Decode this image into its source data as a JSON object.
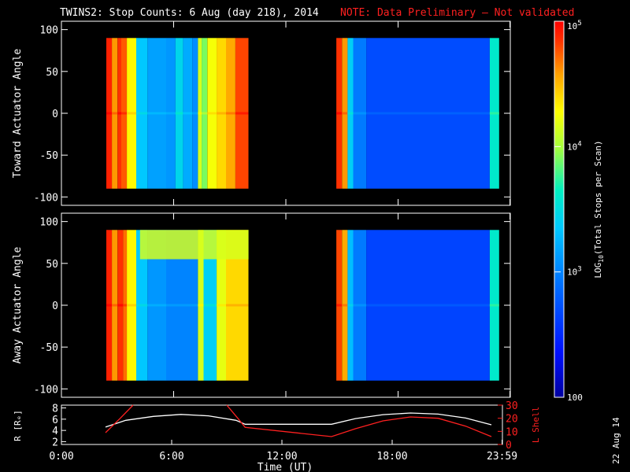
{
  "header": {
    "title": "TWINS2: Stop Counts:  6 Aug (day 218), 2014",
    "note": "NOTE: Data Preliminary – Not validated"
  },
  "footer": {
    "date_stamp": "22 Aug 14"
  },
  "colors": {
    "note": "#ff2020",
    "l_shell_line": "#ff2020",
    "r_line": "#ffffff",
    "background": "#000000"
  },
  "chart_data": [
    {
      "type": "heatmap",
      "ylabel": "Toward Actuator Angle",
      "ylim": [
        -110,
        110
      ],
      "yticks": [
        100,
        50,
        0,
        -50,
        -100
      ],
      "xlim": [
        0,
        24
      ],
      "angle_range": [
        -90,
        90
      ],
      "data_intervals_ut": [
        [
          2.4,
          10.0
        ],
        [
          14.7,
          23.4
        ]
      ],
      "columns": [
        {
          "t0": 2.4,
          "t1": 2.7,
          "log10": 4.9
        },
        {
          "t0": 2.7,
          "t1": 3.0,
          "log10": 4.6
        },
        {
          "t0": 3.0,
          "t1": 3.2,
          "log10": 4.85
        },
        {
          "t0": 3.2,
          "t1": 3.5,
          "log10": 4.75
        },
        {
          "t0": 3.5,
          "t1": 4.0,
          "log10": 4.3
        },
        {
          "t0": 4.0,
          "t1": 4.6,
          "log10": 3.35
        },
        {
          "t0": 4.6,
          "t1": 5.6,
          "log10": 3.15
        },
        {
          "t0": 5.6,
          "t1": 6.1,
          "log10": 3.1
        },
        {
          "t0": 6.1,
          "t1": 6.5,
          "log10": 3.45
        },
        {
          "t0": 6.5,
          "t1": 7.0,
          "log10": 3.2
        },
        {
          "t0": 7.0,
          "t1": 7.3,
          "log10": 3.05
        },
        {
          "t0": 7.3,
          "t1": 7.5,
          "log10": 4.15
        },
        {
          "t0": 7.5,
          "t1": 7.8,
          "log10": 3.9
        },
        {
          "t0": 7.8,
          "t1": 8.3,
          "log10": 4.25
        },
        {
          "t0": 8.3,
          "t1": 8.8,
          "log10": 4.4
        },
        {
          "t0": 8.8,
          "t1": 9.3,
          "log10": 4.55
        },
        {
          "t0": 9.3,
          "t1": 10.0,
          "log10": 4.8
        },
        {
          "t0": 14.7,
          "t1": 15.0,
          "log10": 4.85
        },
        {
          "t0": 15.0,
          "t1": 15.3,
          "log10": 4.6
        },
        {
          "t0": 15.3,
          "t1": 15.6,
          "log10": 3.4
        },
        {
          "t0": 15.6,
          "t1": 16.3,
          "log10": 2.95
        },
        {
          "t0": 16.3,
          "t1": 22.9,
          "log10": 2.7
        },
        {
          "t0": 22.9,
          "t1": 23.4,
          "log10": 3.6
        }
      ]
    },
    {
      "type": "heatmap",
      "ylabel": "Away Actuator Angle",
      "ylim": [
        -110,
        110
      ],
      "yticks": [
        100,
        50,
        0,
        -50,
        -100
      ],
      "xlim": [
        0,
        24
      ],
      "angle_range": [
        -90,
        90
      ],
      "data_intervals_ut": [
        [
          2.4,
          10.0
        ],
        [
          14.7,
          23.4
        ]
      ],
      "columns": [
        {
          "t0": 2.4,
          "t1": 2.7,
          "log10": 4.9
        },
        {
          "t0": 2.7,
          "t1": 3.0,
          "log10": 4.6
        },
        {
          "t0": 3.0,
          "t1": 3.3,
          "log10": 4.85
        },
        {
          "t0": 3.3,
          "t1": 3.5,
          "log10": 4.7
        },
        {
          "t0": 3.5,
          "t1": 4.0,
          "log10": 4.3
        },
        {
          "t0": 4.0,
          "t1": 4.6,
          "log10": 3.35
        },
        {
          "t0": 4.6,
          "t1": 5.6,
          "log10": 3.1
        },
        {
          "t0": 5.6,
          "t1": 7.3,
          "log10": 3.0
        },
        {
          "t0": 7.3,
          "t1": 7.6,
          "log10": 4.15
        },
        {
          "t0": 7.6,
          "t1": 8.3,
          "log10": 3.4
        },
        {
          "t0": 8.3,
          "t1": 8.8,
          "log10": 4.2
        },
        {
          "t0": 8.8,
          "t1": 10.0,
          "log10": 4.4
        },
        {
          "t0": 14.7,
          "t1": 15.0,
          "log10": 4.8
        },
        {
          "t0": 15.0,
          "t1": 15.3,
          "log10": 4.55
        },
        {
          "t0": 15.3,
          "t1": 15.6,
          "log10": 3.3
        },
        {
          "t0": 15.6,
          "t1": 16.3,
          "log10": 2.95
        },
        {
          "t0": 16.3,
          "t1": 22.9,
          "log10": 2.65
        },
        {
          "t0": 22.9,
          "t1": 23.4,
          "log10": 3.6
        }
      ],
      "band": {
        "t0": 4.2,
        "t1": 10.0,
        "angle0": 55,
        "angle1": 90,
        "log10": 4.15
      }
    },
    {
      "type": "line",
      "xlabel": "Time (UT)",
      "xlim": [
        0,
        24
      ],
      "xticks": [
        "0:00",
        "6:00",
        "12:00",
        "18:00",
        "23:59"
      ],
      "xtick_values": [
        0,
        6,
        12,
        18,
        23.98
      ],
      "ylabel": "R [Rₑ]",
      "ylim": [
        1.5,
        8.5
      ],
      "yticks": [
        2,
        4,
        6,
        8
      ],
      "y2label": "L Shell",
      "y2lim": [
        0,
        30
      ],
      "y2ticks": [
        0,
        10,
        20,
        30
      ],
      "series": [
        {
          "name": "R [Rₑ]",
          "axis": "left",
          "x": [
            2.4,
            3.5,
            5.0,
            6.5,
            8.0,
            9.5,
            10.0,
            14.7,
            16.0,
            17.5,
            19.0,
            20.5,
            22.0,
            23.4
          ],
          "values": [
            4.6,
            5.8,
            6.5,
            6.85,
            6.6,
            5.8,
            5.1,
            5.1,
            6.1,
            6.8,
            7.1,
            6.9,
            6.2,
            5.0
          ]
        },
        {
          "name": "L Shell",
          "axis": "right",
          "segments": [
            {
              "x": [
                2.4,
                3.2,
                3.9
              ],
              "values": [
                9,
                20,
                30
              ]
            },
            {
              "x": [
                9.0,
                9.6,
                10.0,
                14.7,
                16.0,
                17.5,
                19.0,
                20.5,
                22.0,
                23.4
              ],
              "values": [
                30,
                20,
                13,
                6,
                12,
                18,
                21,
                20,
                14,
                6
              ]
            }
          ]
        }
      ]
    }
  ],
  "colorbar": {
    "label_prefix": "LOG",
    "label_sub": "10",
    "label_suffix": "(Total Stops per Scan)",
    "log_min": 2,
    "log_max": 5,
    "tick_labels": [
      {
        "log10": 5,
        "base": "10",
        "exp": "5"
      },
      {
        "log10": 4,
        "base": "10",
        "exp": "4"
      },
      {
        "log10": 3,
        "base": "10",
        "exp": "3"
      },
      {
        "log10": 2,
        "base": "100",
        "exp": ""
      }
    ]
  }
}
